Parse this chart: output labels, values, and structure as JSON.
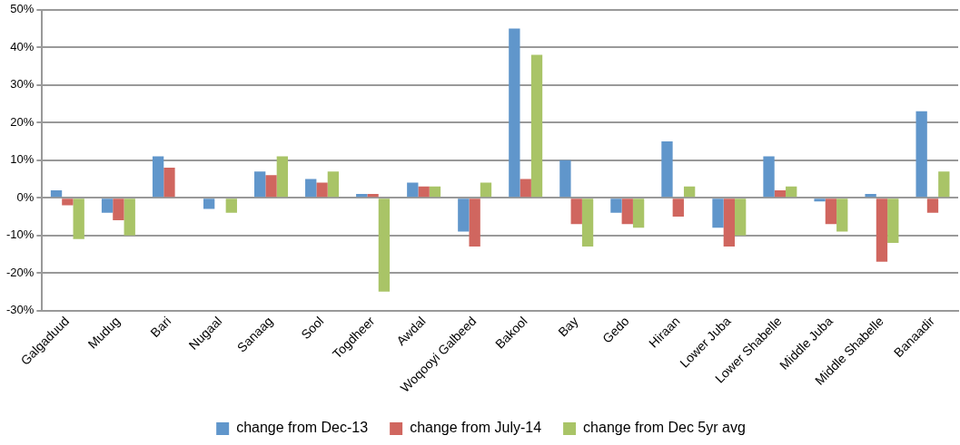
{
  "chart_data": {
    "type": "bar",
    "categories": [
      "Galgaduud",
      "Mudug",
      "Bari",
      "Nugaal",
      "Sanaag",
      "Sool",
      "Togdheer",
      "Awdal",
      "Woqooyi Galbeed",
      "Bakool",
      "Bay",
      "Gedo",
      "Hiraan",
      "Lower Juba",
      "Lower Shabelle",
      "Middle Juba",
      "Middle Shabelle",
      "Banaadir"
    ],
    "series": [
      {
        "name": "change from Dec-13",
        "color": "#6096cb",
        "values": [
          2,
          -4,
          11,
          -3,
          7,
          5,
          1,
          4,
          -9,
          45,
          10,
          -4,
          15,
          -8,
          11,
          -1,
          1,
          23
        ]
      },
      {
        "name": "change from July-14",
        "color": "#d0665f",
        "values": [
          -2,
          -6,
          8,
          null,
          6,
          4,
          1,
          3,
          -13,
          5,
          -7,
          -7,
          -5,
          -13,
          2,
          -7,
          -17,
          -4
        ]
      },
      {
        "name": "change from Dec 5yr avg",
        "color": "#a9c467",
        "values": [
          -11,
          -10,
          null,
          -4,
          11,
          7,
          -25,
          3,
          4,
          38,
          -13,
          -8,
          3,
          -10,
          3,
          -9,
          -12,
          7
        ]
      }
    ],
    "ylim": [
      -30,
      50
    ],
    "yticks": [
      {
        "value": -30,
        "label": "-30%"
      },
      {
        "value": -20,
        "label": "-20%"
      },
      {
        "value": -10,
        "label": "-10%"
      },
      {
        "value": 0,
        "label": "0%"
      },
      {
        "value": 10,
        "label": "10%"
      },
      {
        "value": 20,
        "label": "20%"
      },
      {
        "value": 30,
        "label": "30%"
      },
      {
        "value": 40,
        "label": "40%"
      },
      {
        "value": 50,
        "label": "50%"
      }
    ],
    "grid": "y",
    "legend": "bottom"
  }
}
